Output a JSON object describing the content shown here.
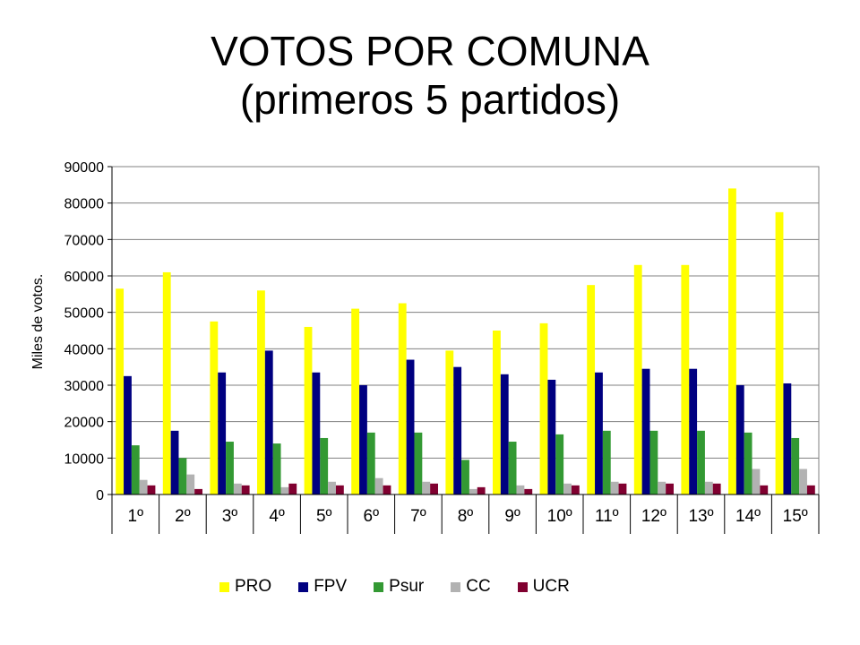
{
  "title": {
    "line1": "VOTOS POR COMUNA",
    "line2": "(primeros 5 partidos)"
  },
  "chart_data": {
    "type": "bar",
    "categories": [
      "1º",
      "2º",
      "3º",
      "4º",
      "5º",
      "6º",
      "7º",
      "8º",
      "9º",
      "10º",
      "11º",
      "12º",
      "13º",
      "14º",
      "15º"
    ],
    "ylabel": "Miles de votos.",
    "xlabel": "",
    "ylim": [
      0,
      90000
    ],
    "yticks": [
      0,
      10000,
      20000,
      30000,
      40000,
      50000,
      60000,
      70000,
      80000,
      90000
    ],
    "grid": true,
    "legend_position": "bottom",
    "series": [
      {
        "name": "PRO",
        "color": "#ffff00",
        "values": [
          56500,
          61000,
          47500,
          56000,
          46000,
          51000,
          52500,
          39500,
          45000,
          47000,
          57500,
          63000,
          63000,
          84000,
          77500
        ]
      },
      {
        "name": "FPV",
        "color": "#000080",
        "values": [
          32500,
          17500,
          33500,
          39500,
          33500,
          30000,
          37000,
          35000,
          33000,
          31500,
          33500,
          34500,
          34500,
          30000,
          30500
        ]
      },
      {
        "name": "Psur",
        "color": "#339933",
        "values": [
          13500,
          10000,
          14500,
          14000,
          15500,
          17000,
          17000,
          9500,
          14500,
          16500,
          17500,
          17500,
          17500,
          17000,
          15500
        ]
      },
      {
        "name": "CC",
        "color": "#b2b2b2",
        "values": [
          4000,
          5500,
          3000,
          2000,
          3500,
          4500,
          3500,
          1500,
          2500,
          3000,
          3500,
          3500,
          3500,
          7000,
          7000
        ]
      },
      {
        "name": "UCR",
        "color": "#800030",
        "values": [
          2500,
          1500,
          2500,
          3000,
          2500,
          2500,
          3000,
          2000,
          1500,
          2500,
          3000,
          3000,
          3000,
          2500,
          2500
        ]
      }
    ]
  }
}
